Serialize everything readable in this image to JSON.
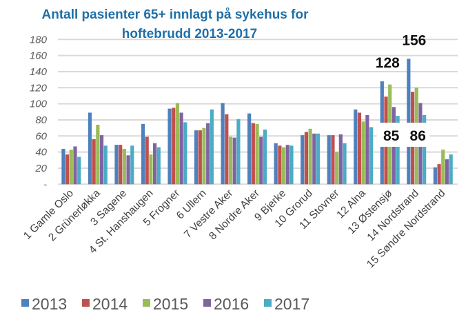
{
  "chart_data": {
    "type": "bar",
    "title": "Antall pasienter 65+ innlagt på sykehus for hoftebrudd 2013-2017",
    "title_lines": [
      "Antall pasienter 65+ innlagt på sykehus for",
      "hoftebrudd 2013-2017"
    ],
    "xlabel": "",
    "ylabel": "",
    "ylim": [
      0,
      180
    ],
    "yticks": [
      0,
      20,
      40,
      60,
      80,
      100,
      120,
      140,
      160,
      180
    ],
    "ytick_labels": [
      "-",
      "20",
      "40",
      "60",
      "80",
      "100",
      "120",
      "140",
      "160",
      "180"
    ],
    "grid": true,
    "legend_position": "bottom",
    "categories": [
      "1 Gamle Oslo",
      "2 Grünerløkka",
      "3 Sagene",
      "4 St. Hanshaugen",
      "5 Frogner",
      "6 Ullern",
      "7 Vestre Aker",
      "8 Nordre Aker",
      "9 Bjerke",
      "10 Grorud",
      "11 Stovner",
      "12 Alna",
      "13 Østensjø",
      "14 Nordstrand",
      "15 Søndre Nordstrand"
    ],
    "series": [
      {
        "name": "2013",
        "color": "#4f81bd",
        "values": [
          44,
          89,
          49,
          75,
          94,
          67,
          101,
          88,
          51,
          61,
          61,
          93,
          128,
          156,
          21
        ]
      },
      {
        "name": "2014",
        "color": "#c0504d",
        "values": [
          37,
          56,
          49,
          59,
          95,
          67,
          87,
          76,
          48,
          65,
          61,
          89,
          109,
          115,
          25
        ]
      },
      {
        "name": "2015",
        "color": "#9bbb59",
        "values": [
          43,
          74,
          44,
          37,
          101,
          70,
          59,
          75,
          46,
          69,
          40,
          78,
          124,
          120,
          43
        ]
      },
      {
        "name": "2016",
        "color": "#8064a2",
        "values": [
          47,
          61,
          36,
          51,
          89,
          76,
          58,
          59,
          49,
          63,
          62,
          86,
          96,
          101,
          31
        ]
      },
      {
        "name": "2017",
        "color": "#4bacc6",
        "values": [
          34,
          48,
          48,
          46,
          77,
          93,
          81,
          68,
          48,
          63,
          51,
          71,
          85,
          86,
          37
        ]
      }
    ],
    "annotations": [
      {
        "text": "128",
        "category": "13 Østensjø",
        "series": "2013"
      },
      {
        "text": "156",
        "category": "14 Nordstrand",
        "series": "2013"
      },
      {
        "text": "85",
        "category": "13 Østensjø",
        "series": "2017"
      },
      {
        "text": "86",
        "category": "14 Nordstrand",
        "series": "2017"
      }
    ]
  }
}
